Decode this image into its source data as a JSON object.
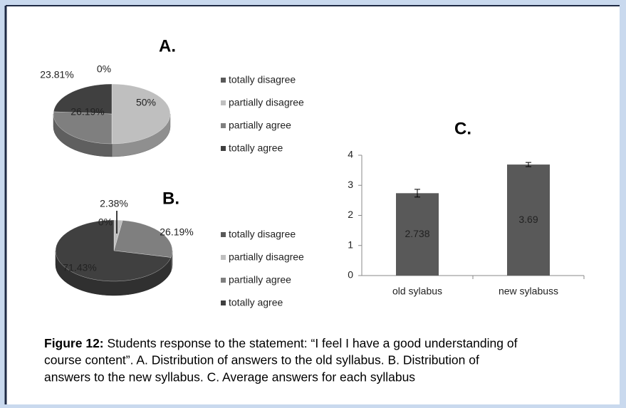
{
  "chart_data": [
    {
      "type": "pie",
      "title": "A.",
      "categories": [
        "totally disagree",
        "partially disagree",
        "partially agree",
        "totally agree"
      ],
      "values": [
        0,
        50,
        26.19,
        23.81
      ],
      "value_labels": [
        "0%",
        "50%",
        "26.19%",
        "23.81%"
      ],
      "colors": [
        "#595959",
        "#bfbfbf",
        "#7f7f7f",
        "#404040"
      ],
      "legend": "right"
    },
    {
      "type": "pie",
      "title": "B.",
      "categories": [
        "totally disagree",
        "partially disagree",
        "partially agree",
        "totally agree"
      ],
      "values": [
        0,
        2.38,
        26.19,
        71.43
      ],
      "value_labels": [
        "0%",
        "2.38%",
        "26.19%",
        "71.43%"
      ],
      "colors": [
        "#595959",
        "#bfbfbf",
        "#7f7f7f",
        "#404040"
      ],
      "legend": "right"
    },
    {
      "type": "bar",
      "title": "C.",
      "categories": [
        "old sylabus",
        "new sylabuss"
      ],
      "values": [
        2.738,
        3.69
      ],
      "errors": [
        0.13,
        0.07
      ],
      "color": "#595959",
      "ylim": [
        0,
        4
      ],
      "yticks": [
        0,
        1,
        2,
        3,
        4
      ],
      "grid": false
    }
  ],
  "caption": {
    "label": "Figure 12:",
    "lines": [
      " Students response to the statement: “I feel I have a good understanding of",
      "course content”. A. Distribution of answers to the old syllabus. B. Distribution of",
      "answers to the new syllabus. C. Average answers for each syllabus"
    ]
  }
}
